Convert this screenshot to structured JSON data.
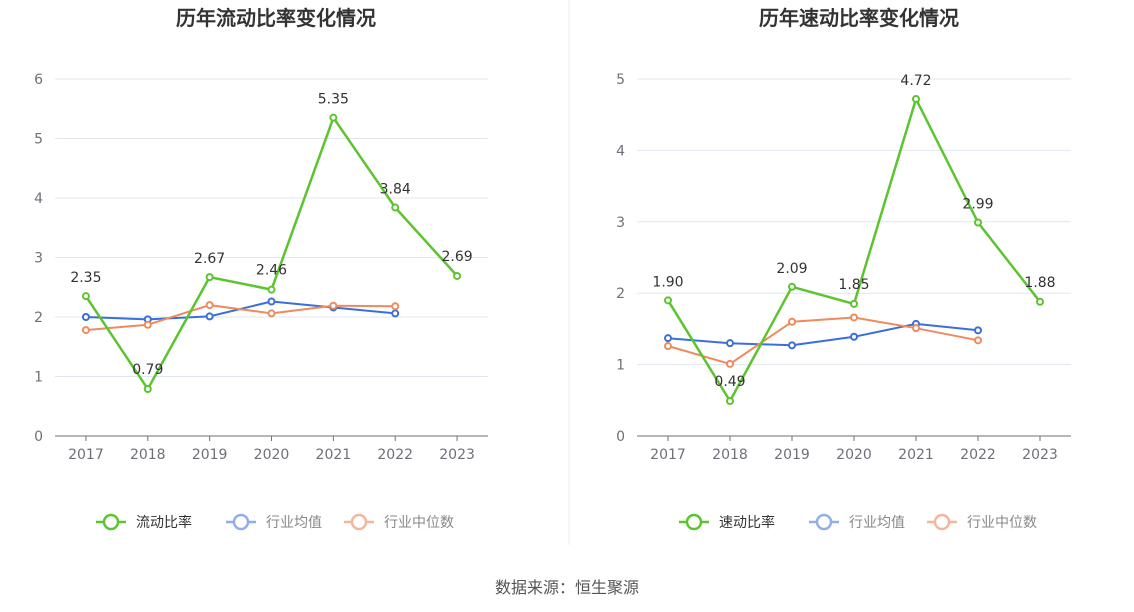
{
  "chart_data": [
    {
      "type": "line",
      "title": "历年流动比率变化情况",
      "categories": [
        "2017",
        "2018",
        "2019",
        "2020",
        "2021",
        "2022",
        "2023"
      ],
      "ylim": [
        0,
        6
      ],
      "yticks": [
        0,
        1,
        2,
        3,
        4,
        5,
        6
      ],
      "grid": true,
      "legend_position": "bottom",
      "series": [
        {
          "name": "流动比率",
          "color": "#5cc42e",
          "values": [
            2.35,
            0.79,
            2.67,
            2.46,
            5.35,
            3.84,
            2.69
          ],
          "labels": [
            "2.35",
            "0.79",
            "2.67",
            "2.46",
            "5.35",
            "3.84",
            "2.69"
          ]
        },
        {
          "name": "行业均值",
          "color": "#3a6fd8",
          "values": [
            2.0,
            1.96,
            2.01,
            2.26,
            2.16,
            2.06,
            null
          ]
        },
        {
          "name": "行业中位数",
          "color": "#ef8a5d",
          "values": [
            1.78,
            1.87,
            2.2,
            2.06,
            2.19,
            2.18,
            null
          ]
        }
      ]
    },
    {
      "type": "line",
      "title": "历年速动比率变化情况",
      "categories": [
        "2017",
        "2018",
        "2019",
        "2020",
        "2021",
        "2022",
        "2023"
      ],
      "ylim": [
        0,
        5
      ],
      "yticks": [
        0,
        1,
        2,
        3,
        4,
        5
      ],
      "grid": true,
      "legend_position": "bottom",
      "series": [
        {
          "name": "速动比率",
          "color": "#5cc42e",
          "values": [
            1.9,
            0.49,
            2.09,
            1.85,
            4.72,
            2.99,
            1.88
          ],
          "labels": [
            "1.90",
            "0.49",
            "2.09",
            "1.85",
            "4.72",
            "2.99",
            "1.88"
          ]
        },
        {
          "name": "行业均值",
          "color": "#3a6fd8",
          "values": [
            1.37,
            1.3,
            1.27,
            1.39,
            1.57,
            1.48,
            null
          ]
        },
        {
          "name": "行业中位数",
          "color": "#ef8a5d",
          "values": [
            1.26,
            1.01,
            1.6,
            1.66,
            1.51,
            1.34,
            null
          ]
        }
      ]
    }
  ],
  "source_text": "数据来源：恒生聚源"
}
